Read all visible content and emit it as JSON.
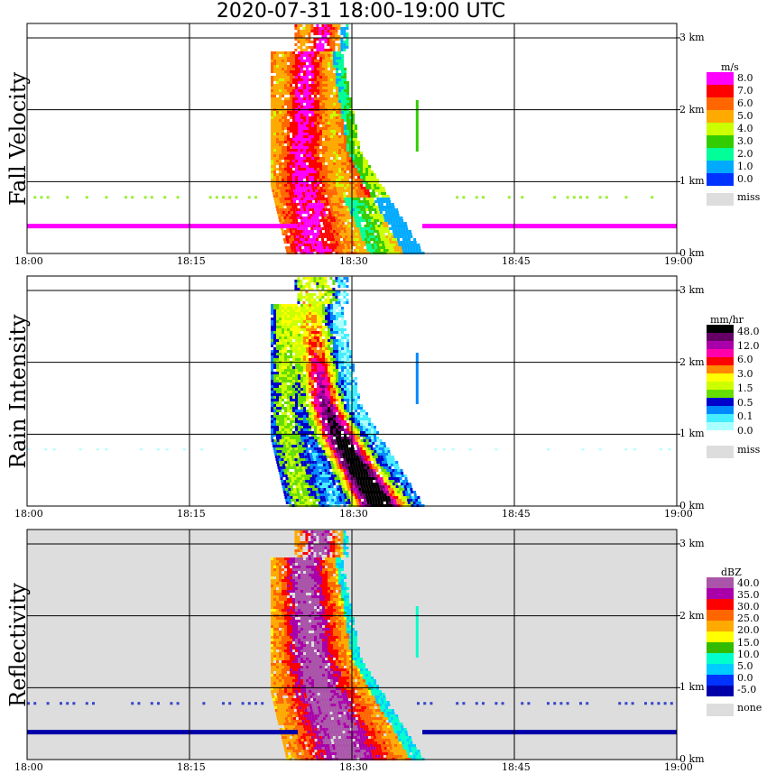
{
  "title": "2020-07-31   18:00-19:00 UTC",
  "x_tick_labels": [
    "18:00",
    "18:15",
    "18:30",
    "18:45",
    "19:00"
  ],
  "y_tick_labels": [
    "3 km",
    "2 km",
    "1 km",
    "0 km"
  ],
  "chart_data": [
    {
      "type": "heatmap",
      "panel_label": "Fall Velocity",
      "x_range": [
        "18:00",
        "19:00"
      ],
      "ylim": [
        0,
        3.2
      ],
      "grid": true,
      "legend": {
        "unit": "m/s",
        "levels": [
          "8.0",
          "7.0",
          "6.0",
          "5.0",
          "4.0",
          "3.0",
          "2.0",
          "1.0",
          "0.0"
        ],
        "colors": [
          "#ff00ff",
          "#ff0000",
          "#ff6600",
          "#ffaa00",
          "#ccff00",
          "#33cc00",
          "#00ff99",
          "#00aaff",
          "#0033ff"
        ],
        "missing_label": "miss",
        "missing_color": "#dddddd"
      }
    },
    {
      "type": "heatmap",
      "panel_label": "Rain Intensity",
      "x_range": [
        "18:00",
        "19:00"
      ],
      "ylim": [
        0,
        3.2
      ],
      "grid": true,
      "legend": {
        "unit": "mm/hr",
        "levels": [
          "48.0",
          "12.0",
          "6.0",
          "3.0",
          "1.5",
          "0.5",
          "0.1",
          "0.0"
        ],
        "colors": [
          "#000000",
          "#660066",
          "#aa00aa",
          "#ff00aa",
          "#ff0000",
          "#ff8800",
          "#ffff00",
          "#ccff00",
          "#66dd00",
          "#0000cc",
          "#0088ff",
          "#44eeff",
          "#aaffff",
          "#ffffff"
        ],
        "missing_label": "miss",
        "missing_color": "#dddddd"
      }
    },
    {
      "type": "heatmap",
      "panel_label": "Reflectivity",
      "x_range": [
        "18:00",
        "19:00"
      ],
      "ylim": [
        0,
        3.2
      ],
      "grid": true,
      "legend": {
        "unit": "dBZ",
        "levels": [
          "40.0",
          "35.0",
          "30.0",
          "25.0",
          "20.0",
          "15.0",
          "10.0",
          "5.0",
          "0.0",
          "-5.0"
        ],
        "colors": [
          "#aa55aa",
          "#aa00aa",
          "#ff0000",
          "#ff6600",
          "#ffaa00",
          "#ffff00",
          "#33bb00",
          "#00ffcc",
          "#00ccff",
          "#0033ff",
          "#0000aa"
        ],
        "missing_label": "none",
        "missing_color": "#dddddd"
      }
    }
  ]
}
